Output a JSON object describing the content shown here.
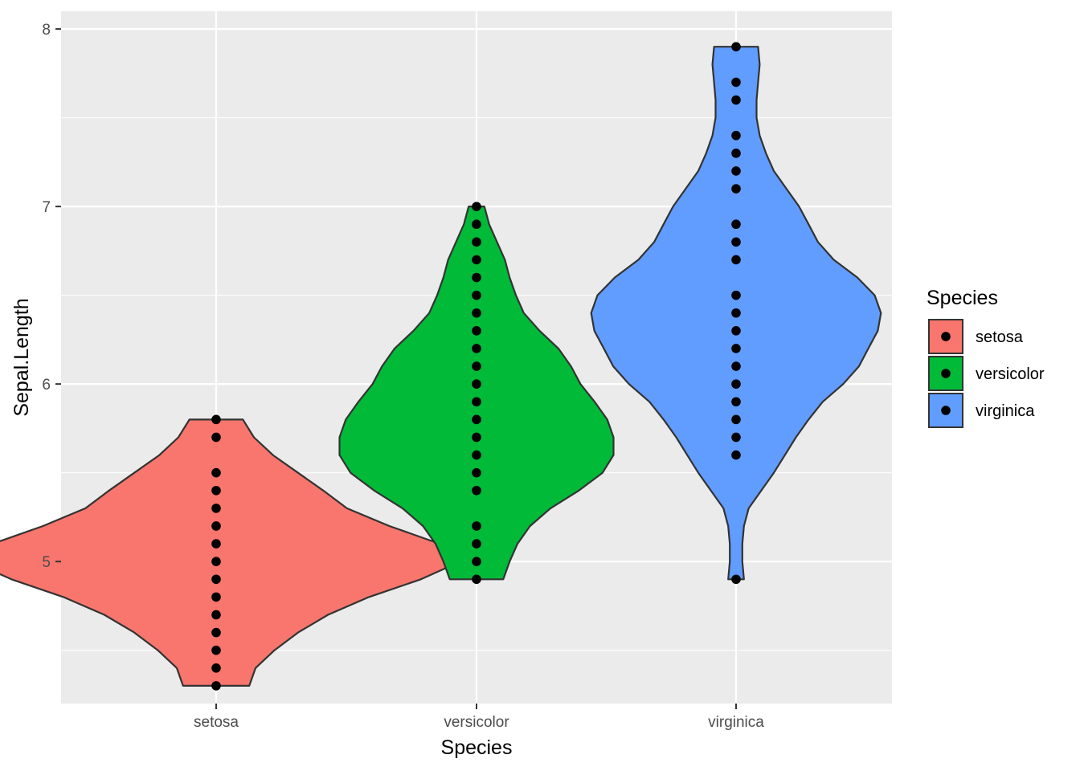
{
  "chart_data": {
    "type": "violin",
    "xlabel": "Species",
    "ylabel": "Sepal.Length",
    "categories": [
      "setosa",
      "versicolor",
      "virginica"
    ],
    "ylim": [
      4.2,
      8.1
    ],
    "y_ticks": [
      5,
      6,
      7,
      8
    ],
    "y_tick_labels": [
      "5",
      "6",
      "7",
      "8"
    ],
    "grid": true,
    "legend": {
      "title": "Species",
      "position": "right",
      "entries": [
        "setosa",
        "versicolor",
        "virginica"
      ]
    },
    "series": [
      {
        "name": "setosa",
        "color": "#F8766D",
        "min": 4.3,
        "max": 5.8,
        "points": [
          4.3,
          4.4,
          4.5,
          4.6,
          4.7,
          4.8,
          4.9,
          5.0,
          5.1,
          5.2,
          5.3,
          5.4,
          5.5,
          5.7,
          5.8
        ],
        "density_profile": [
          [
            4.3,
            0.21
          ],
          [
            4.4,
            0.25
          ],
          [
            4.5,
            0.37
          ],
          [
            4.6,
            0.52
          ],
          [
            4.7,
            0.71
          ],
          [
            4.8,
            0.97
          ],
          [
            4.9,
            1.3
          ],
          [
            5.0,
            1.55
          ],
          [
            5.03,
            1.58
          ],
          [
            5.1,
            1.42
          ],
          [
            5.2,
            1.1
          ],
          [
            5.3,
            0.83
          ],
          [
            5.4,
            0.68
          ],
          [
            5.5,
            0.52
          ],
          [
            5.6,
            0.36
          ],
          [
            5.7,
            0.24
          ],
          [
            5.8,
            0.17
          ]
        ]
      },
      {
        "name": "versicolor",
        "color": "#00BA38",
        "min": 4.9,
        "max": 7.0,
        "points": [
          4.9,
          5.0,
          5.1,
          5.2,
          5.4,
          5.5,
          5.6,
          5.7,
          5.8,
          5.9,
          6.0,
          6.1,
          6.2,
          6.3,
          6.4,
          6.5,
          6.6,
          6.7,
          6.8,
          6.9,
          7.0
        ],
        "density_profile": [
          [
            4.9,
            0.17
          ],
          [
            5.0,
            0.21
          ],
          [
            5.1,
            0.26
          ],
          [
            5.2,
            0.34
          ],
          [
            5.3,
            0.47
          ],
          [
            5.4,
            0.65
          ],
          [
            5.5,
            0.8
          ],
          [
            5.6,
            0.87
          ],
          [
            5.7,
            0.87
          ],
          [
            5.8,
            0.83
          ],
          [
            5.9,
            0.75
          ],
          [
            6.0,
            0.66
          ],
          [
            6.1,
            0.6
          ],
          [
            6.2,
            0.52
          ],
          [
            6.3,
            0.4
          ],
          [
            6.4,
            0.3
          ],
          [
            6.5,
            0.25
          ],
          [
            6.6,
            0.21
          ],
          [
            6.7,
            0.18
          ],
          [
            6.8,
            0.13
          ],
          [
            6.9,
            0.08
          ],
          [
            7.0,
            0.05
          ]
        ]
      },
      {
        "name": "virginica",
        "color": "#619CFF",
        "min": 4.9,
        "max": 7.9,
        "points": [
          4.9,
          5.6,
          5.7,
          5.8,
          5.9,
          6.0,
          6.1,
          6.2,
          6.3,
          6.4,
          6.5,
          6.7,
          6.8,
          6.9,
          7.1,
          7.2,
          7.3,
          7.4,
          7.6,
          7.7,
          7.9
        ],
        "density_profile": [
          [
            4.9,
            0.05
          ],
          [
            5.0,
            0.04
          ],
          [
            5.1,
            0.04
          ],
          [
            5.2,
            0.05
          ],
          [
            5.3,
            0.08
          ],
          [
            5.4,
            0.16
          ],
          [
            5.5,
            0.24
          ],
          [
            5.6,
            0.31
          ],
          [
            5.7,
            0.38
          ],
          [
            5.8,
            0.46
          ],
          [
            5.9,
            0.55
          ],
          [
            6.0,
            0.68
          ],
          [
            6.1,
            0.78
          ],
          [
            6.2,
            0.84
          ],
          [
            6.3,
            0.9
          ],
          [
            6.4,
            0.92
          ],
          [
            6.5,
            0.88
          ],
          [
            6.6,
            0.77
          ],
          [
            6.7,
            0.62
          ],
          [
            6.8,
            0.52
          ],
          [
            6.9,
            0.46
          ],
          [
            7.0,
            0.4
          ],
          [
            7.1,
            0.32
          ],
          [
            7.2,
            0.24
          ],
          [
            7.3,
            0.19
          ],
          [
            7.4,
            0.15
          ],
          [
            7.5,
            0.13
          ],
          [
            7.6,
            0.13
          ],
          [
            7.7,
            0.14
          ],
          [
            7.8,
            0.15
          ],
          [
            7.9,
            0.14
          ]
        ]
      }
    ]
  }
}
